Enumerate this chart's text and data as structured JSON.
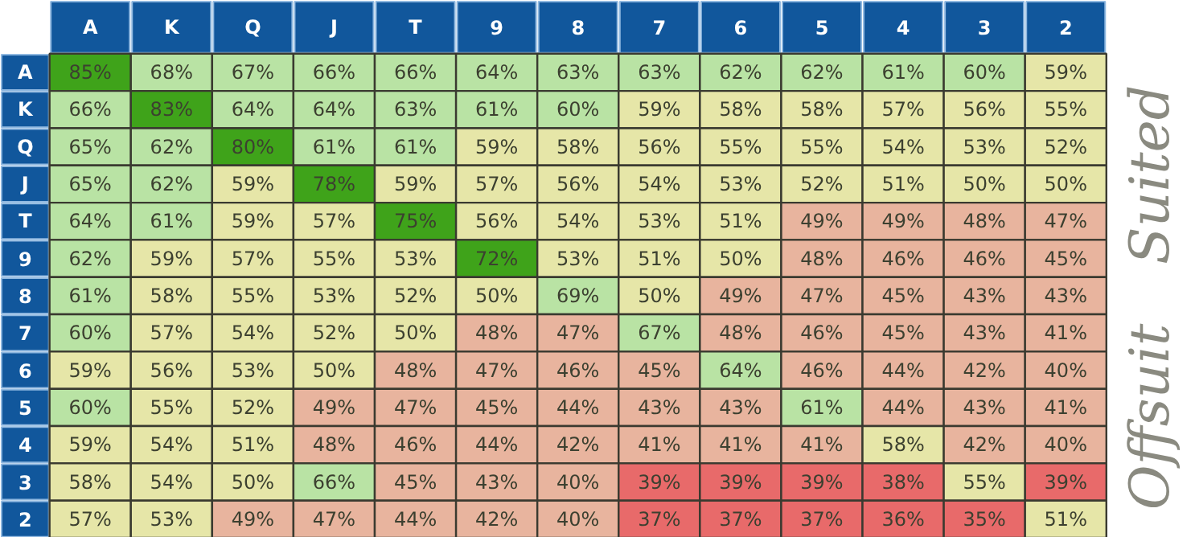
{
  "chart_data": {
    "type": "heatmap",
    "categories": [
      "A",
      "K",
      "Q",
      "J",
      "T",
      "9",
      "8",
      "7",
      "6",
      "5",
      "4",
      "3",
      "2"
    ],
    "y_categories": [
      "A",
      "K",
      "Q",
      "J",
      "T",
      "9",
      "8",
      "7",
      "6",
      "5",
      "4",
      "3",
      "2"
    ],
    "cells": [
      [
        85,
        68,
        67,
        66,
        66,
        64,
        63,
        63,
        62,
        62,
        61,
        60,
        59
      ],
      [
        66,
        83,
        64,
        64,
        63,
        61,
        60,
        59,
        58,
        58,
        57,
        56,
        55
      ],
      [
        65,
        62,
        80,
        61,
        61,
        59,
        58,
        56,
        55,
        55,
        54,
        53,
        52
      ],
      [
        65,
        62,
        59,
        78,
        59,
        57,
        56,
        54,
        53,
        52,
        51,
        50,
        50
      ],
      [
        64,
        61,
        59,
        57,
        75,
        56,
        54,
        53,
        51,
        49,
        49,
        48,
        47
      ],
      [
        62,
        59,
        57,
        55,
        53,
        72,
        53,
        51,
        50,
        48,
        46,
        46,
        45
      ],
      [
        61,
        58,
        55,
        53,
        52,
        50,
        69,
        50,
        49,
        47,
        45,
        43,
        43
      ],
      [
        60,
        57,
        54,
        52,
        50,
        48,
        47,
        67,
        48,
        46,
        45,
        43,
        41
      ],
      [
        59,
        56,
        53,
        50,
        48,
        47,
        46,
        45,
        64,
        46,
        44,
        42,
        40
      ],
      [
        60,
        55,
        52,
        49,
        47,
        45,
        44,
        43,
        43,
        61,
        44,
        43,
        41
      ],
      [
        59,
        54,
        51,
        48,
        46,
        44,
        42,
        41,
        41,
        41,
        58,
        42,
        40
      ],
      [
        58,
        54,
        50,
        66,
        45,
        43,
        40,
        39,
        39,
        39,
        38,
        55,
        39
      ],
      [
        57,
        53,
        49,
        47,
        44,
        42,
        40,
        37,
        37,
        37,
        36,
        35,
        51
      ]
    ],
    "cell_labels": [
      [
        "85%",
        "68%",
        "67%",
        "66%",
        "66%",
        "64%",
        "63%",
        "63%",
        "62%",
        "62%",
        "61%",
        "60%",
        "59%"
      ],
      [
        "66%",
        "83%",
        "64%",
        "64%",
        "63%",
        "61%",
        "60%",
        "59%",
        "58%",
        "58%",
        "57%",
        "56%",
        "55%"
      ],
      [
        "65%",
        "62%",
        "80%",
        "61%",
        "61%",
        "59%",
        "58%",
        "56%",
        "55%",
        "55%",
        "54%",
        "53%",
        "52%"
      ],
      [
        "65%",
        "62%",
        "59%",
        "78%",
        "59%",
        "57%",
        "56%",
        "54%",
        "53%",
        "52%",
        "51%",
        "50%",
        "50%"
      ],
      [
        "64%",
        "61%",
        "59%",
        "57%",
        "75%",
        "56%",
        "54%",
        "53%",
        "51%",
        "49%",
        "49%",
        "48%",
        "47%"
      ],
      [
        "62%",
        "59%",
        "57%",
        "55%",
        "53%",
        "72%",
        "53%",
        "51%",
        "50%",
        "48%",
        "46%",
        "46%",
        "45%"
      ],
      [
        "61%",
        "58%",
        "55%",
        "53%",
        "52%",
        "50%",
        "69%",
        "50%",
        "49%",
        "47%",
        "45%",
        "43%",
        "43%"
      ],
      [
        "60%",
        "57%",
        "54%",
        "52%",
        "50%",
        "48%",
        "47%",
        "67%",
        "48%",
        "46%",
        "45%",
        "43%",
        "41%"
      ],
      [
        "59%",
        "56%",
        "53%",
        "50%",
        "48%",
        "47%",
        "46%",
        "45%",
        "64%",
        "46%",
        "44%",
        "42%",
        "40%"
      ],
      [
        "60%",
        "55%",
        "52%",
        "49%",
        "47%",
        "45%",
        "44%",
        "43%",
        "43%",
        "61%",
        "44%",
        "43%",
        "41%"
      ],
      [
        "59%",
        "54%",
        "51%",
        "48%",
        "46%",
        "44%",
        "42%",
        "41%",
        "41%",
        "41%",
        "58%",
        "42%",
        "40%"
      ],
      [
        "58%",
        "54%",
        "50%",
        "66%",
        "45%",
        "43%",
        "40%",
        "39%",
        "39%",
        "39%",
        "38%",
        "55%",
        "39%"
      ],
      [
        "57%",
        "53%",
        "49%",
        "47%",
        "44%",
        "42%",
        "40%",
        "37%",
        "37%",
        "37%",
        "36%",
        "35%",
        "51%"
      ]
    ],
    "annotations": [
      "Suited",
      "Offsuit"
    ]
  }
}
